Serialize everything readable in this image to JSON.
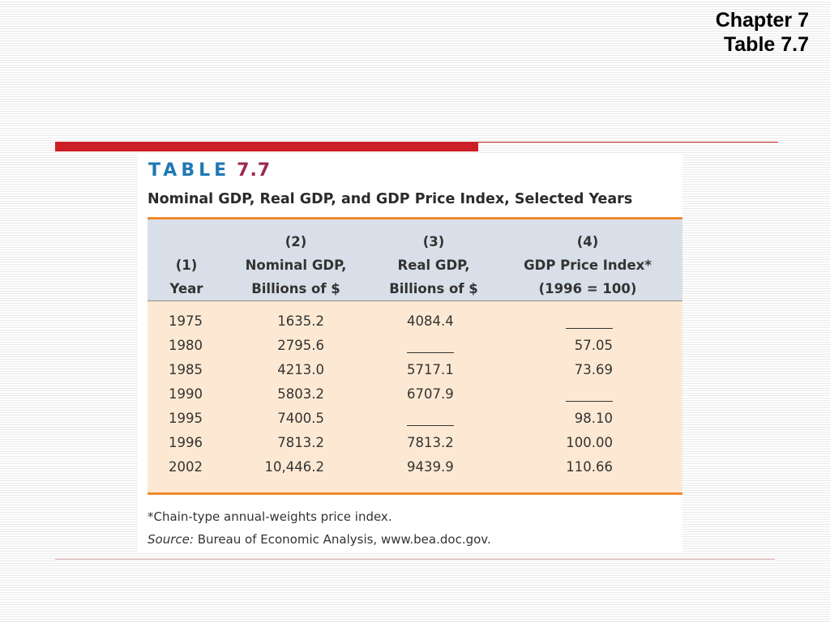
{
  "slide": {
    "chapter": "Chapter 7",
    "table_ref": "Table 7.7"
  },
  "table": {
    "label_word": "TABLE",
    "label_number": "7.7",
    "title": "Nominal GDP, Real GDP, and GDP Price Index, Selected Years",
    "columns": [
      {
        "line1": "",
        "line2": "(1)",
        "line3": "Year"
      },
      {
        "line1": "(2)",
        "line2": "Nominal GDP,",
        "line3": "Billions of $"
      },
      {
        "line1": "(3)",
        "line2": "Real GDP,",
        "line3": "Billions of $"
      },
      {
        "line1": "(4)",
        "line2": "GDP Price Index*",
        "line3": "(1996 = 100)"
      }
    ],
    "rows": [
      [
        "1975",
        "1635.2",
        "4084.4",
        ""
      ],
      [
        "1980",
        "2795.6",
        "",
        "57.05"
      ],
      [
        "1985",
        "4213.0",
        "5717.1",
        "73.69"
      ],
      [
        "1990",
        "5803.2",
        "6707.9",
        ""
      ],
      [
        "1995",
        "7400.5",
        "",
        "98.10"
      ],
      [
        "1996",
        "7813.2",
        "7813.2",
        "100.00"
      ],
      [
        "2002",
        "10,446.2",
        "9439.9",
        "110.66"
      ]
    ],
    "footnote": "*Chain-type annual-weights price index.",
    "source_label": "Source:",
    "source_text": "Bureau of Economic Analysis, www.bea.doc.gov."
  },
  "colors": {
    "accent_red": "#cc1f26",
    "label_blue": "#1f78b4",
    "label_maroon": "#9b2a4e",
    "orange_rule": "#f08a2c",
    "header_band": "#d8dfe8",
    "body_band": "#fde9d3"
  }
}
